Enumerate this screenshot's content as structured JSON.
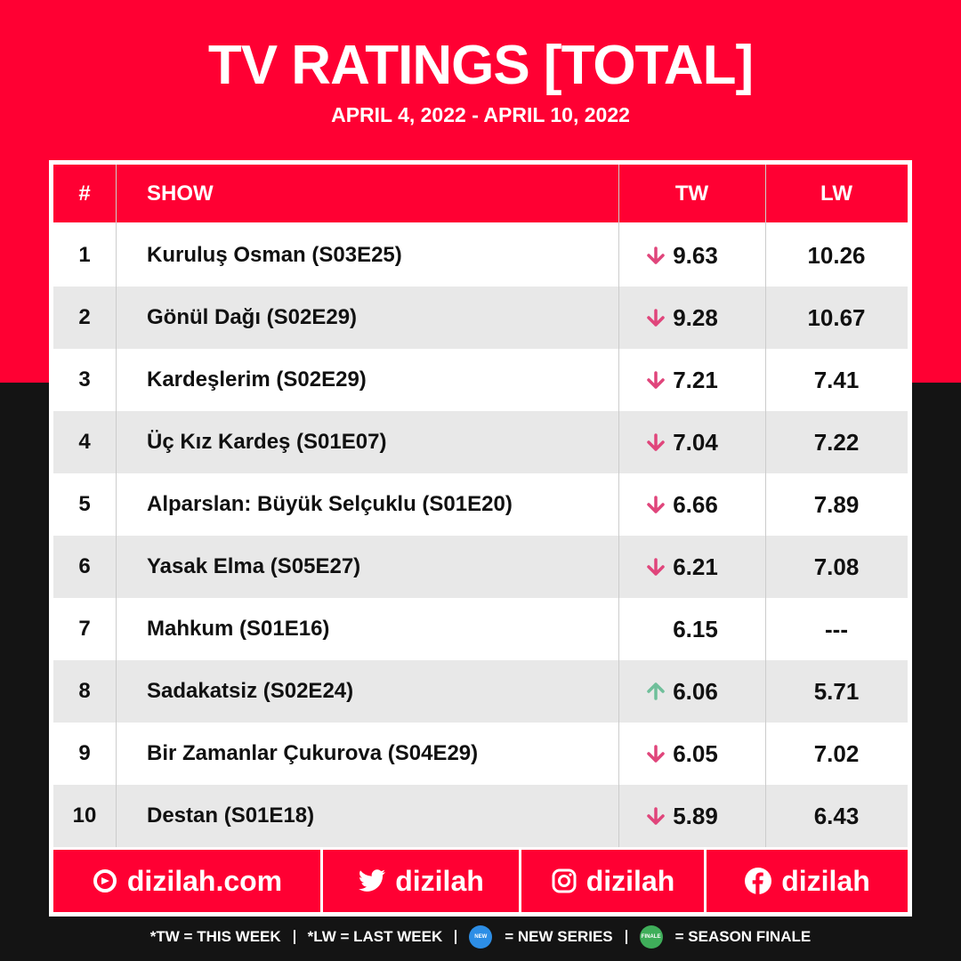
{
  "header": {
    "title": "TV RATINGS [TOTAL]",
    "subtitle": "APRIL 4, 2022 - APRIL 10, 2022"
  },
  "table": {
    "columns": [
      "#",
      "SHOW",
      "TW",
      "LW"
    ],
    "rows": [
      [
        "1",
        "Kuruluş Osman (S03E25)",
        "9.63",
        "10.26"
      ],
      [
        "2",
        "Gönül Dağı (S02E29)",
        "9.28",
        "10.67"
      ],
      [
        "3",
        "Kardeşlerim (S02E29)",
        "7.21",
        "7.41"
      ],
      [
        "4",
        "Üç Kız Kardeş (S01E07)",
        "7.04",
        "7.22"
      ],
      [
        "5",
        "Alparslan: Büyük Selçuklu (S01E20)",
        "6.66",
        "7.89"
      ],
      [
        "6",
        "Yasak Elma (S05E27)",
        "6.21",
        "7.08"
      ],
      [
        "7",
        "Mahkum (S01E16)",
        "6.15",
        "---"
      ],
      [
        "8",
        "Sadakatsiz (S02E24)",
        "6.06",
        "5.71"
      ],
      [
        "9",
        "Bir Zamanlar Çukurova (S04E29)",
        "6.05",
        "7.02"
      ],
      [
        "10",
        "Destan (S01E18)",
        "5.89",
        "6.43"
      ]
    ],
    "trends": [
      "down",
      "down",
      "down",
      "down",
      "down",
      "down",
      null,
      "up",
      "down",
      "down"
    ]
  },
  "footer": {
    "links": [
      "dizilah.com",
      "dizilah",
      "dizilah",
      "dizilah"
    ]
  },
  "legend": {
    "items": [
      "*TW =  THIS WEEK",
      "*LW =  LAST WEEK",
      "=  NEW SERIES",
      "=  SEASON FINALE"
    ],
    "badges": [
      "NEW",
      "FINALE"
    ]
  }
}
